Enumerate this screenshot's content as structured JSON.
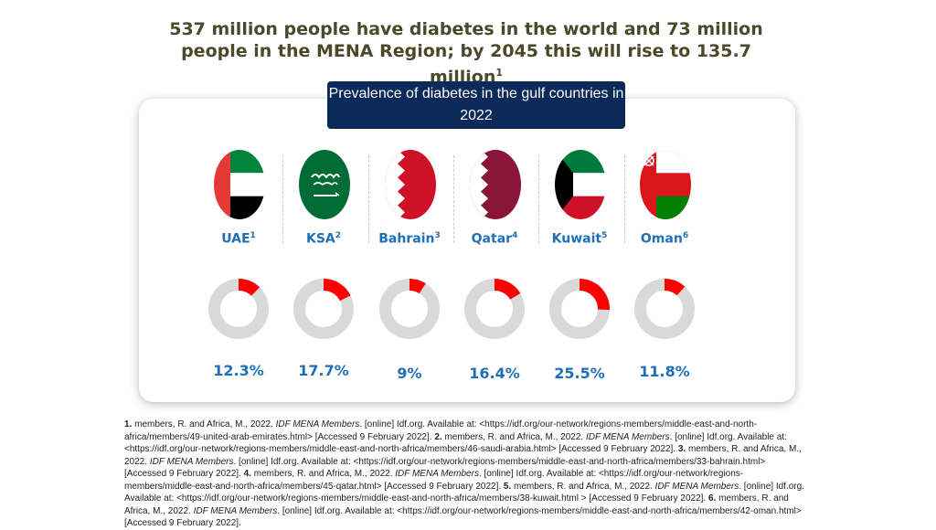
{
  "headline": {
    "text": "537 million people have diabetes in the world and 73 million people in the MENA Region; by 2045 this will rise to 135.7 million",
    "sup": "1"
  },
  "subtitle": "Prevalence of diabetes in the gulf countries in 2022",
  "countries": [
    {
      "name": "UAE",
      "sup": "1",
      "value": "12.3%",
      "fraction": 0.123,
      "flag_icon": "uae-flag-icon"
    },
    {
      "name": "KSA",
      "sup": "2",
      "value": "17.7%",
      "fraction": 0.177,
      "flag_icon": "saudi-flag-icon"
    },
    {
      "name": "Bahrain",
      "sup": "3",
      "value": "9%",
      "fraction": 0.09,
      "flag_icon": "bahrain-flag-icon"
    },
    {
      "name": "Qatar",
      "sup": "4",
      "value": "16.4%",
      "fraction": 0.164,
      "flag_icon": "qatar-flag-icon"
    },
    {
      "name": "Kuwait",
      "sup": "5",
      "value": "25.5%",
      "fraction": 0.255,
      "flag_icon": "kuwait-flag-icon"
    },
    {
      "name": "Oman",
      "sup": "6",
      "value": "11.8%",
      "fraction": 0.118,
      "flag_icon": "oman-flag-icon"
    }
  ],
  "colors": {
    "donut_fill": "#ff0000",
    "donut_track": "#d9d9d9",
    "accent": "#1e6fb5",
    "subtitle_bg": "#0b2a5a"
  },
  "references": [
    {
      "num": "1.",
      "pre": " members, R. and Africa, M., 2022. ",
      "italic": "IDF MENA Members",
      "post": ". [online] Idf.org. Available at: <https://idf.org/our-network/regions-members/middle-east-and-north-africa/members/49-united-arab-emirates.html> [Accessed 9 February 2022]. "
    },
    {
      "num": "2.",
      "pre": " members, R. and Africa, M., 2022. ",
      "italic": "IDF MENA Members",
      "post": ". [online] Idf.org. Available at: <https://idf.org/our-network/regions-members/middle-east-and-north-africa/members/46-saudi-arabia.html> [Accessed 9 February 2022]. "
    },
    {
      "num": "3.",
      "pre": " members, R. and Africa, M., 2022. ",
      "italic": "IDF MENA Members",
      "post": ". [online] Idf.org. Available at: <https://idf.org/our-network/regions-members/middle-east-and-north-africa/members/33-bahrain.html> [Accessed 9 February 2022]. "
    },
    {
      "num": "4.",
      "pre": " members, R. and Africa, M., 2022. ",
      "italic": "IDF MENA Members",
      "post": ". [online] Idf.org. Available at: <https://idf.org/our-network/regions-members/middle-east-and-north-africa/members/45-qatar.html> [Accessed 9 February 2022]. "
    },
    {
      "num": "5.",
      "pre": " members, R. and Africa, M., 2022. ",
      "italic": "IDF MENA Members",
      "post": ". [online] Idf.org. Available at: <https://idf.org/our-network/regions-members/middle-east-and-north-africa/members/38-kuwait.html > [Accessed 9 February 2022]. "
    },
    {
      "num": "6.",
      "pre": " members, R. and Africa, M., 2022. ",
      "italic": "IDF MENA Members",
      "post": ". [online] Idf.org. Available at: <https://idf.org/our-network/regions-members/middle-east-and-north-africa/members/42-oman.html> [Accessed 9 February 2022]."
    }
  ]
}
